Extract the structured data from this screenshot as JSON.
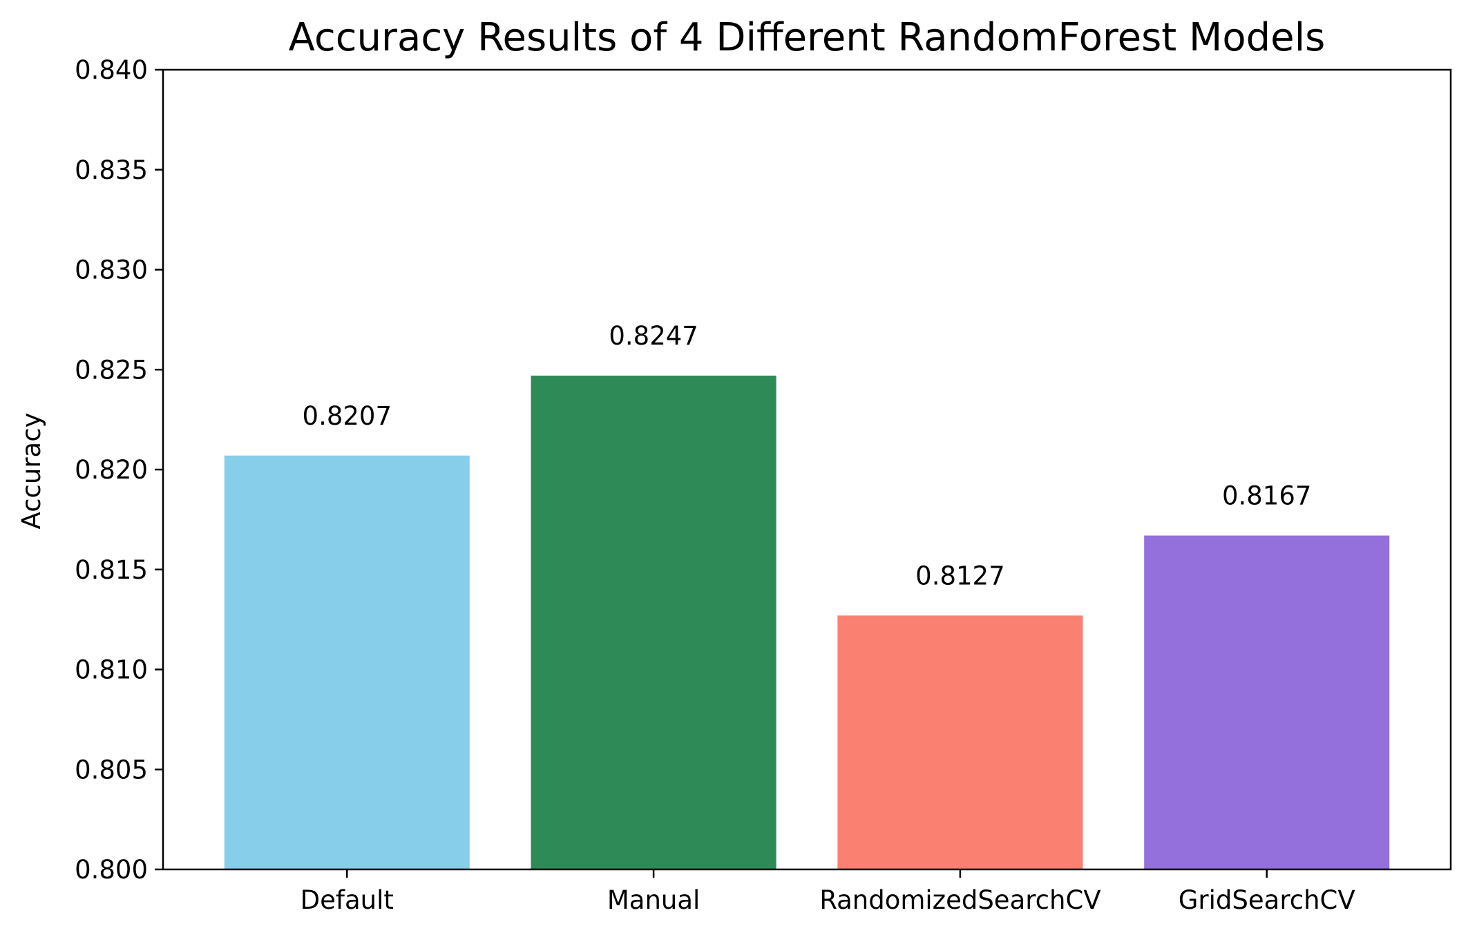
{
  "chart_data": {
    "type": "bar",
    "title": "Accuracy Results of 4 Different RandomForest Models",
    "xlabel": "",
    "ylabel": "Accuracy",
    "categories": [
      "Default",
      "Manual",
      "RandomizedSearchCV",
      "GridSearchCV"
    ],
    "values": [
      0.8207,
      0.8247,
      0.8127,
      0.8167
    ],
    "value_labels": [
      "0.8207",
      "0.8247",
      "0.8127",
      "0.8167"
    ],
    "colors": [
      "#87ceeb",
      "#2e8b57",
      "#fa8072",
      "#9370db"
    ],
    "ylim": [
      0.8,
      0.84
    ],
    "yticks": [
      0.8,
      0.805,
      0.81,
      0.815,
      0.82,
      0.825,
      0.83,
      0.835,
      0.84
    ],
    "ytick_labels": [
      "0.800",
      "0.805",
      "0.810",
      "0.815",
      "0.820",
      "0.825",
      "0.830",
      "0.835",
      "0.840"
    ],
    "grid": false,
    "legend": "none"
  }
}
